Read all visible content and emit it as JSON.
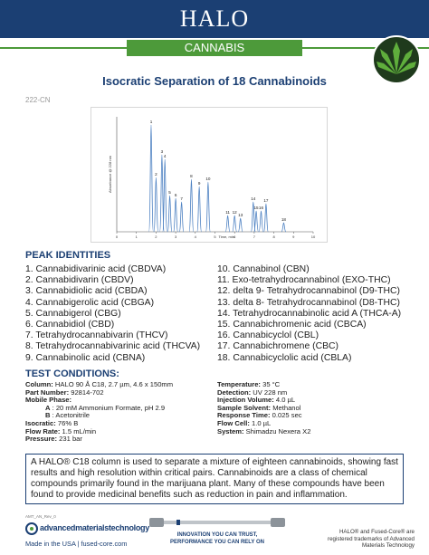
{
  "header": {
    "logo": "HALO",
    "banner": "CANNABIS"
  },
  "title": "Isocratic Separation of 18 Cannabinoids",
  "doc_id": "222-CN",
  "chromatogram": {
    "type": "chromatogram",
    "x_label": "Time, min",
    "y_label": "Absorbance @ 228 nm",
    "xlim": [
      0,
      10
    ],
    "xticks": [
      0,
      1,
      2,
      3,
      4,
      5,
      6,
      7,
      8,
      9,
      10
    ],
    "color": "#4a7fc1",
    "peaks": [
      {
        "label": "1",
        "time": 1.75,
        "height": 118
      },
      {
        "label": "2",
        "time": 2.0,
        "height": 60
      },
      {
        "label": "3",
        "time": 2.3,
        "height": 85
      },
      {
        "label": "4",
        "time": 2.45,
        "height": 80
      },
      {
        "label": "5",
        "time": 2.7,
        "height": 40
      },
      {
        "label": "6",
        "time": 3.0,
        "height": 37
      },
      {
        "label": "7",
        "time": 3.3,
        "height": 33
      },
      {
        "label": "8",
        "time": 3.8,
        "height": 58
      },
      {
        "label": "9",
        "time": 4.2,
        "height": 50
      },
      {
        "label": "10",
        "time": 4.65,
        "height": 55
      },
      {
        "label": "11",
        "time": 5.65,
        "height": 18
      },
      {
        "label": "12",
        "time": 6.0,
        "height": 18
      },
      {
        "label": "13",
        "time": 6.3,
        "height": 15
      },
      {
        "label": "14",
        "time": 6.95,
        "height": 33
      },
      {
        "label": "15",
        "time": 7.1,
        "height": 23
      },
      {
        "label": "16",
        "time": 7.35,
        "height": 23
      },
      {
        "label": "17",
        "time": 7.6,
        "height": 31
      },
      {
        "label": "18",
        "time": 8.5,
        "height": 10
      }
    ]
  },
  "peak_identities": {
    "heading": "PEAK IDENTITIES",
    "items": [
      "1. Cannabidivarinic acid (CBDVA)",
      "2. Cannabidivarin (CBDV)",
      "3. Cannabidiolic acid (CBDA)",
      "4. Cannabigerolic acid (CBGA)",
      "5. Cannabigerol (CBG)",
      "6. Cannabidiol (CBD)",
      "7. Tetrahydrocannabivarin (THCV)",
      "8. Tetrahydrocannabivarinic acid (THCVA)",
      "9. Cannabinolic acid (CBNA)",
      "10. Cannabinol (CBN)",
      "11. Exo-tetrahydrocannabinol (EXO-THC)",
      "12. delta 9- Tetrahydrocannabinol (D9-THC)",
      "13. delta 8- Tetrahydrocannabinol (D8-THC)",
      "14. Tetrahydrocannabinolic acid A (THCA-A)",
      "15. Cannabichromenic acid (CBCA)",
      "16. Cannabicyclol (CBL)",
      "17. Cannabichromene (CBC)",
      "18. Cannabicyclolic acid (CBLA)"
    ]
  },
  "test_conditions": {
    "heading": "TEST CONDITIONS:",
    "left": [
      {
        "label": "Column:",
        "value": "HALO 90 Å C18, 2.7 µm, 4.6 x 150mm"
      },
      {
        "label": "Part Number:",
        "value": "92814-702"
      },
      {
        "label": "Mobile Phase:",
        "sub": [
          {
            "label": "A",
            "value": ": 20 mM Ammonium Formate, pH 2.9"
          },
          {
            "label": "B",
            "value": ": Acetonitrile"
          }
        ]
      },
      {
        "label": "Isocratic:",
        "value": "76% B"
      },
      {
        "label": "Flow Rate:",
        "value": "1.5 mL/min"
      },
      {
        "label": "Pressure:",
        "value": "231 bar"
      }
    ],
    "right": [
      {
        "label": "Temperature:",
        "value": "35 °C"
      },
      {
        "label": "Detection:",
        "value": "UV 228 nm"
      },
      {
        "label": "Injection Volume:",
        "value": "4.0 µL"
      },
      {
        "label": "Sample Solvent:",
        "value": "Methanol"
      },
      {
        "label": "Response Time:",
        "value": "0.025 sec"
      },
      {
        "label": "Flow Cell:",
        "value": "1.0 µL"
      },
      {
        "label": "System:",
        "value": "Shimadzu Nexera X2"
      }
    ]
  },
  "description": "A HALO® C18 column is used to separate a mixture of eighteen cannabinoids, showing fast results and high resolution within critical pairs. Cannabinoids are a class of chemical compounds primarily found in the marijuana plant. Many of these compounds have been found to provide medicinal benefits such as reduction in pain and inflammation.",
  "footer": {
    "revision": "AMT_AN_Rev_0",
    "company": "advancedmaterialstechnology",
    "made_in": "Made in the USA | fused-core.com",
    "tagline": [
      "INNOVATION YOU CAN TRUST,",
      "PERFORMANCE YOU CAN RELY ON"
    ],
    "trademark": "HALO® and Fused-Core® are registered trademarks of Advanced Materials Technology"
  }
}
